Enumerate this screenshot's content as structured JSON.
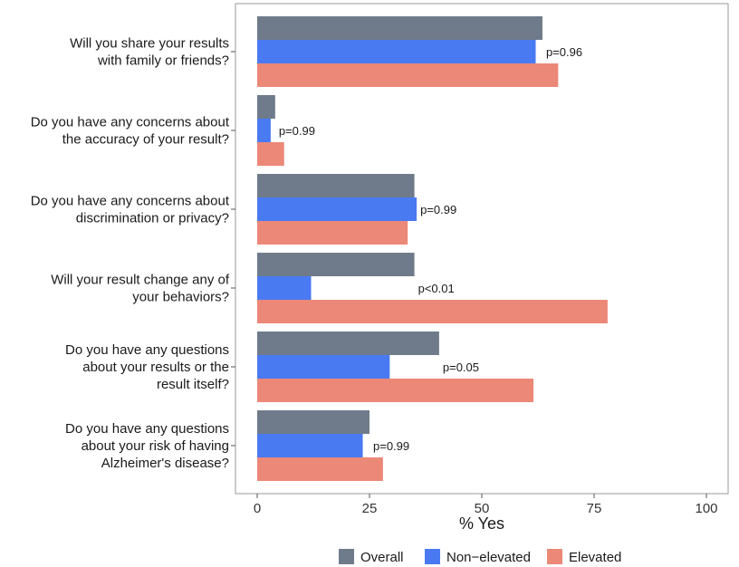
{
  "chart_data": {
    "type": "bar",
    "orientation": "horizontal",
    "xlabel": "% Yes",
    "xlim": [
      0,
      100
    ],
    "xticks": [
      0,
      25,
      50,
      75,
      100
    ],
    "grid": false,
    "legend_position": "bottom",
    "categories": [
      [
        "Will you share your results",
        "with family or friends?"
      ],
      [
        "Do you have any concerns about",
        "the accuracy of your result?"
      ],
      [
        "Do you have any concerns about",
        "discrimination or privacy?"
      ],
      [
        "Will your result change any of",
        "your behaviors?"
      ],
      [
        "Do you have any questions",
        "about your results or the",
        "result itself?"
      ],
      [
        "Do you have any questions",
        "about your risk of having",
        "Alzheimer's disease?"
      ]
    ],
    "series": [
      {
        "name": "Overall",
        "color": "#6f7b8a",
        "values": [
          63.5,
          4,
          35,
          35,
          40.5,
          25
        ]
      },
      {
        "name": "Non−elevated",
        "color": "#4a7af2",
        "values": [
          62,
          3,
          35.5,
          12,
          29.5,
          23.5
        ]
      },
      {
        "name": "Elevated",
        "color": "#ec8878",
        "values": [
          67,
          6,
          33.5,
          78,
          61.5,
          28
        ]
      }
    ],
    "annotations": [
      "p=0.96",
      "p=0.99",
      "p=0.99",
      "p<0.01",
      "p=0.05",
      "p=0.99"
    ]
  }
}
